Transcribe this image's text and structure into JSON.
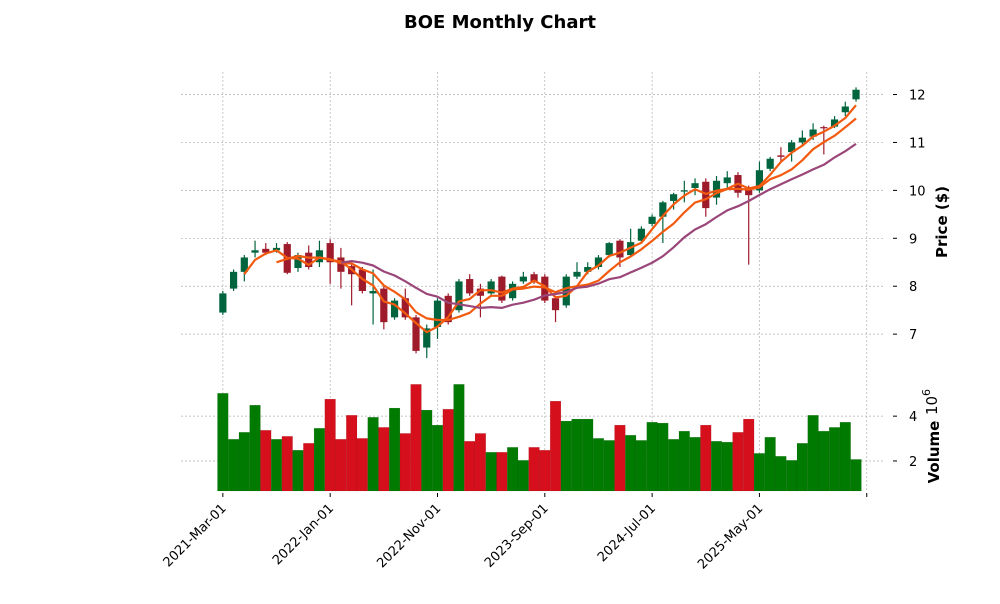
{
  "chart_data": {
    "type": "candlestick",
    "title": "BOE Monthly Chart",
    "ylabel": "Price ($)",
    "volume_label": "Volume",
    "volume_exponent": "10",
    "volume_exponent_power": "6",
    "start_month": "2021-03",
    "xtick_labels": [
      "2021-Mar-01",
      "2022-Jan-01",
      "2022-Nov-01",
      "2023-Sep-01",
      "2024-Jul-01",
      "2025-May-01",
      ""
    ],
    "xtick_every": 10,
    "price_ticks": [
      7,
      8,
      9,
      10,
      11,
      12
    ],
    "price_ylim": [
      6.21,
      12.47
    ],
    "volume_ticks": [
      2,
      4
    ],
    "volume_ylim": [
      0.66,
      5.97
    ],
    "moving_averages": [
      3,
      6,
      12
    ],
    "colors": {
      "up": "#00653e",
      "down": "#9e1b2b",
      "vol_up": "#007a00",
      "vol_down": "#d50f1b",
      "mav": [
        "#f25a0f",
        "#f25a0f",
        "#9a4679"
      ]
    },
    "ohlc": [
      [
        7.45,
        7.9,
        7.4,
        7.85
      ],
      [
        7.95,
        8.35,
        7.9,
        8.3
      ],
      [
        8.3,
        8.65,
        8.1,
        8.6
      ],
      [
        8.7,
        8.95,
        8.6,
        8.75
      ],
      [
        8.78,
        8.9,
        8.65,
        8.7
      ],
      [
        8.75,
        8.9,
        8.7,
        8.8
      ],
      [
        8.88,
        8.92,
        8.25,
        8.28
      ],
      [
        8.38,
        8.7,
        8.3,
        8.65
      ],
      [
        8.7,
        8.85,
        8.35,
        8.4
      ],
      [
        8.5,
        8.95,
        8.4,
        8.75
      ],
      [
        8.9,
        8.98,
        8.05,
        8.5
      ],
      [
        8.6,
        8.8,
        7.95,
        8.3
      ],
      [
        8.42,
        8.5,
        7.6,
        8.25
      ],
      [
        8.35,
        8.4,
        7.85,
        7.9
      ],
      [
        7.85,
        8.35,
        7.2,
        7.9
      ],
      [
        7.95,
        8.0,
        7.1,
        7.25
      ],
      [
        7.35,
        7.75,
        7.3,
        7.7
      ],
      [
        7.75,
        7.95,
        7.3,
        7.35
      ],
      [
        7.35,
        7.4,
        6.6,
        6.65
      ],
      [
        6.72,
        7.2,
        6.5,
        7.12
      ],
      [
        7.15,
        7.75,
        6.9,
        7.7
      ],
      [
        7.8,
        7.85,
        7.2,
        7.25
      ],
      [
        7.5,
        8.15,
        7.45,
        8.1
      ],
      [
        8.15,
        8.25,
        7.8,
        7.85
      ],
      [
        7.95,
        8.05,
        7.35,
        7.8
      ],
      [
        7.85,
        8.15,
        7.8,
        8.1
      ],
      [
        8.2,
        8.22,
        7.65,
        7.7
      ],
      [
        7.75,
        8.1,
        7.7,
        8.05
      ],
      [
        8.1,
        8.3,
        8.05,
        8.2
      ],
      [
        8.25,
        8.3,
        8.05,
        8.1
      ],
      [
        8.2,
        8.25,
        7.65,
        7.7
      ],
      [
        7.75,
        7.8,
        7.25,
        7.5
      ],
      [
        7.6,
        8.25,
        7.55,
        8.2
      ],
      [
        8.2,
        8.5,
        8.15,
        8.3
      ],
      [
        8.3,
        8.5,
        8.25,
        8.4
      ],
      [
        8.4,
        8.65,
        8.35,
        8.6
      ],
      [
        8.65,
        8.92,
        8.6,
        8.9
      ],
      [
        8.95,
        8.98,
        8.4,
        8.6
      ],
      [
        8.65,
        9.2,
        8.6,
        8.92
      ],
      [
        8.95,
        9.25,
        8.9,
        9.2
      ],
      [
        9.3,
        9.5,
        9.25,
        9.45
      ],
      [
        9.45,
        9.78,
        8.9,
        9.75
      ],
      [
        9.78,
        9.95,
        9.6,
        9.92
      ],
      [
        9.98,
        10.2,
        9.75,
        10.0
      ],
      [
        10.05,
        10.25,
        9.9,
        10.15
      ],
      [
        10.18,
        10.25,
        9.45,
        9.63
      ],
      [
        9.85,
        10.3,
        9.7,
        10.2
      ],
      [
        10.15,
        10.4,
        10.05,
        10.27
      ],
      [
        10.32,
        10.38,
        9.85,
        9.95
      ],
      [
        10.07,
        10.1,
        8.45,
        9.9
      ],
      [
        10.0,
        10.6,
        9.95,
        10.42
      ],
      [
        10.45,
        10.7,
        10.4,
        10.66
      ],
      [
        10.73,
        10.9,
        10.6,
        10.7
      ],
      [
        10.8,
        11.05,
        10.6,
        11.0
      ],
      [
        11.0,
        11.25,
        10.95,
        11.1
      ],
      [
        11.12,
        11.4,
        11.05,
        11.27
      ],
      [
        11.32,
        11.35,
        10.75,
        11.3
      ],
      [
        11.33,
        11.55,
        11.3,
        11.48
      ],
      [
        11.63,
        11.85,
        11.55,
        11.75
      ],
      [
        11.9,
        12.15,
        11.85,
        12.1
      ]
    ],
    "volume": [
      5.02,
      2.97,
      3.28,
      4.49,
      3.37,
      2.97,
      3.1,
      2.48,
      2.79,
      3.46,
      4.76,
      2.97,
      4.04,
      3.01,
      3.95,
      3.5,
      4.36,
      3.23,
      5.42,
      4.27,
      3.6,
      4.31,
      5.42,
      2.88,
      3.23,
      2.39,
      2.39,
      2.61,
      2.03,
      2.61,
      2.48,
      4.67,
      3.78,
      3.87,
      3.87,
      3.01,
      2.92,
      3.6,
      3.15,
      2.92,
      3.73,
      3.69,
      2.97,
      3.33,
      3.06,
      3.6,
      2.88,
      2.84,
      3.28,
      3.87,
      2.34,
      3.06,
      2.21,
      2.03,
      2.79,
      4.04,
      3.33,
      3.5,
      3.73,
      2.07
    ]
  }
}
